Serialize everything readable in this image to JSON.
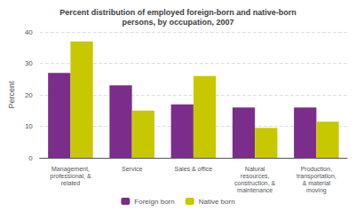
{
  "chart_data": {
    "type": "bar",
    "title": "Percent distribution of employed foreign-born and native-born\npersons, by occupation, 2007",
    "categories": [
      "Management,\nprofessional, &\nrelated",
      "Service",
      "Sales & office",
      "Natural\nresources,\nconstruction, &\nmaintenance",
      "Production,\ntransportation,\n& material\nmoving"
    ],
    "series": [
      {
        "name": "Foreign born",
        "color": "#7B2D8B",
        "values": [
          27,
          23,
          17,
          16,
          16
        ]
      },
      {
        "name": "Native born",
        "color": "#C8C800",
        "values": [
          37,
          15,
          26,
          9.5,
          11.5
        ]
      }
    ],
    "ylabel": "Percent",
    "ylim": [
      0,
      40
    ],
    "yticks": [
      0,
      10,
      20,
      30,
      40
    ],
    "grid": true,
    "legend": "bottom"
  }
}
